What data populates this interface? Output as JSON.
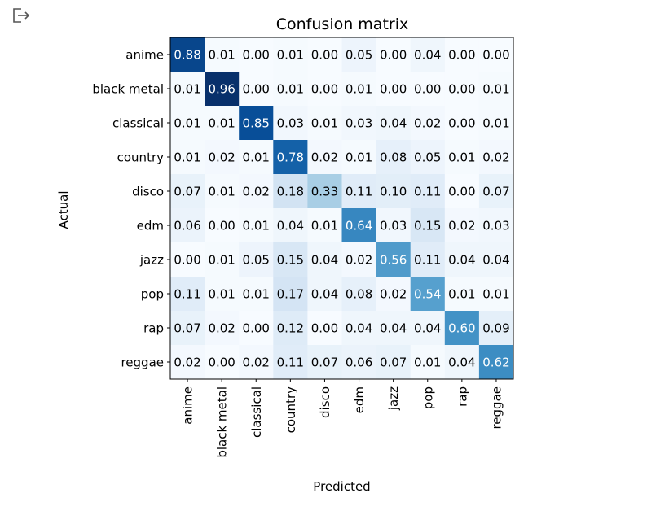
{
  "output_toolbar": {
    "icon": "output-expand-icon"
  },
  "chart_data": {
    "type": "heatmap",
    "title": "Confusion matrix",
    "xlabel": "Predicted",
    "ylabel": "Actual",
    "x_categories": [
      "anime",
      "black metal",
      "classical",
      "country",
      "disco",
      "edm",
      "jazz",
      "pop",
      "rap",
      "reggae"
    ],
    "y_categories": [
      "anime",
      "black metal",
      "classical",
      "country",
      "disco",
      "edm",
      "jazz",
      "pop",
      "rap",
      "reggae"
    ],
    "colormap": "Blues",
    "values": [
      [
        0.88,
        0.01,
        0.0,
        0.01,
        0.0,
        0.05,
        0.0,
        0.04,
        0.0,
        0.0
      ],
      [
        0.01,
        0.96,
        0.0,
        0.01,
        0.0,
        0.01,
        0.0,
        0.0,
        0.0,
        0.01
      ],
      [
        0.01,
        0.01,
        0.85,
        0.03,
        0.01,
        0.03,
        0.04,
        0.02,
        0.0,
        0.01
      ],
      [
        0.01,
        0.02,
        0.01,
        0.78,
        0.02,
        0.01,
        0.08,
        0.05,
        0.01,
        0.02
      ],
      [
        0.07,
        0.01,
        0.02,
        0.18,
        0.33,
        0.11,
        0.1,
        0.11,
        0.0,
        0.07
      ],
      [
        0.06,
        0.0,
        0.01,
        0.04,
        0.01,
        0.64,
        0.03,
        0.15,
        0.02,
        0.03
      ],
      [
        0.0,
        0.01,
        0.05,
        0.15,
        0.04,
        0.02,
        0.56,
        0.11,
        0.04,
        0.04
      ],
      [
        0.11,
        0.01,
        0.01,
        0.17,
        0.04,
        0.08,
        0.02,
        0.54,
        0.01,
        0.01
      ],
      [
        0.07,
        0.02,
        0.0,
        0.12,
        0.0,
        0.04,
        0.04,
        0.04,
        0.6,
        0.09
      ],
      [
        0.02,
        0.0,
        0.02,
        0.11,
        0.07,
        0.06,
        0.07,
        0.01,
        0.04,
        0.62
      ]
    ]
  }
}
